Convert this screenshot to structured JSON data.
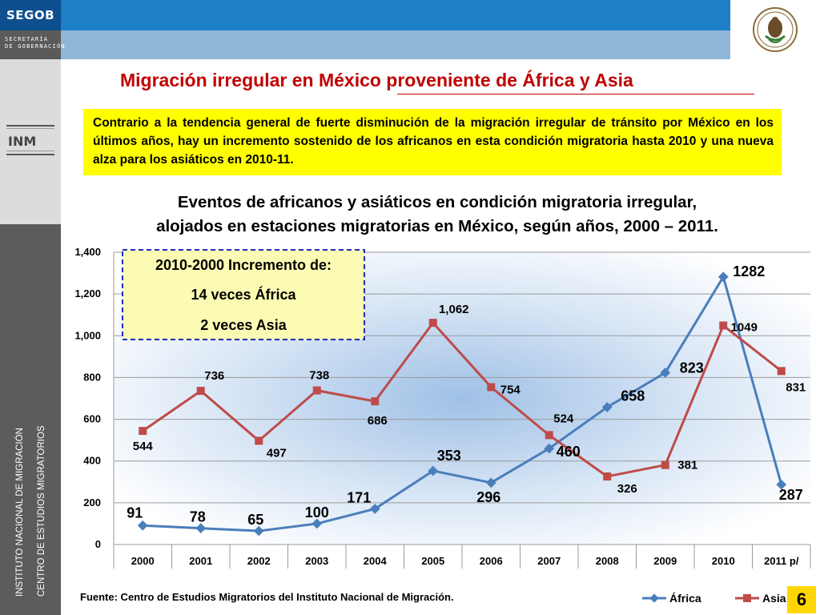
{
  "header": {
    "brand": "SEGOB",
    "secretaria": "SECRETARÍA\nDE GOBERNACIÓN"
  },
  "sidebar": {
    "vertical_line1": "INSTITUTO NACIONAL DE MIGRACIÓN",
    "vertical_line2": "CENTRO DE ESTUDIOS MIGRATORIOS"
  },
  "slide": {
    "title": "Migración irregular en México proveniente de África y Asia",
    "highlight": "Contrario a la tendencia general de fuerte disminución de la migración irregular de tránsito por México en los últimos años, hay un incremento sostenido de los africanos en esta condición migratoria hasta 2010 y una nueva alza para los asiáticos en 2010-11.",
    "subtitle_line1": "Eventos de africanos y asiáticos en condición migratoria irregular,",
    "subtitle_line2": "alojados en estaciones migratorias en México, según años, 2000 – 2011.",
    "source": "Fuente: Centro de Estudios Migratorios del Instituto Nacional de Migración.",
    "page_number": "6"
  },
  "colors": {
    "africa": "#4a7ebb",
    "asia": "#be4b48",
    "title": "#c00000",
    "highlight_bg": "#ffff00"
  },
  "chart_data": {
    "type": "line",
    "categories": [
      "2000",
      "2001",
      "2002",
      "2003",
      "2004",
      "2005",
      "2006",
      "2007",
      "2008",
      "2009",
      "2010",
      "2011 p/"
    ],
    "series": [
      {
        "name": "África",
        "values": [
          91,
          78,
          65,
          100,
          171,
          353,
          296,
          460,
          658,
          823,
          1282,
          287
        ],
        "labels": [
          "91",
          "78",
          "65",
          "100",
          "171",
          "353",
          "296",
          "460",
          "658",
          "823",
          "1282",
          "287"
        ]
      },
      {
        "name": "Asia",
        "values": [
          544,
          736,
          497,
          738,
          686,
          1062,
          754,
          524,
          326,
          381,
          1049,
          831
        ],
        "labels": [
          "544",
          "736",
          "497",
          "738",
          "686",
          "1,062",
          "754",
          "524",
          "326",
          "381",
          "1049",
          "831"
        ]
      }
    ],
    "ylim": [
      0,
      1400
    ],
    "yticks": [
      "0",
      "200",
      "400",
      "600",
      "800",
      "1,000",
      "1,200",
      "1,400"
    ],
    "grid": true,
    "legend_position": "bottom-right",
    "annotation": {
      "line1": "2010-2000 Incremento de:",
      "line2": "14 veces África",
      "line3": "2 veces Asia"
    }
  }
}
